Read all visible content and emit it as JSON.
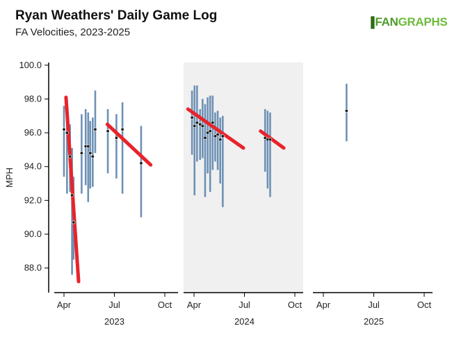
{
  "title": "Ryan Weathers' Daily Game Log",
  "subtitle": "FA Velocities, 2023-2025",
  "logo": {
    "mark": "▐",
    "text_a": "FAN",
    "text_b": "GRAPHS"
  },
  "colors": {
    "range": "#6e91b5",
    "trend": "#e8232b",
    "point": "#1a1a1a",
    "shade": "#f0f0f0",
    "axis": "#000000"
  },
  "chart_data": {
    "type": "scatter",
    "ylabel": "MPH",
    "ylim": [
      87.0,
      100.2
    ],
    "yticks": [
      "88.0",
      "90.0",
      "92.0",
      "94.0",
      "96.0",
      "98.0",
      "100.0"
    ],
    "panels": [
      {
        "year": "2023",
        "shaded": false,
        "xticks": [
          "Apr",
          "Jul",
          "Oct"
        ],
        "games": [
          {
            "x": 0.0,
            "avg": 96.2,
            "min": 93.4,
            "max": 97.6
          },
          {
            "x": 0.06,
            "avg": 96.0,
            "min": 92.4,
            "max": 97.3
          },
          {
            "x": 0.12,
            "avg": 94.6,
            "min": 92.5,
            "max": 96.5
          },
          {
            "x": 0.16,
            "avg": 92.3,
            "min": 87.6,
            "max": 95.1
          },
          {
            "x": 0.19,
            "avg": 90.7,
            "min": 88.5,
            "max": 93.4
          },
          {
            "x": 0.35,
            "avg": 94.8,
            "min": 92.4,
            "max": 97.1
          },
          {
            "x": 0.43,
            "avg": 95.2,
            "min": 92.9,
            "max": 97.4
          },
          {
            "x": 0.48,
            "avg": 95.2,
            "min": 91.9,
            "max": 97.2
          },
          {
            "x": 0.52,
            "avg": 94.8,
            "min": 92.7,
            "max": 96.7
          },
          {
            "x": 0.57,
            "avg": 94.6,
            "min": 92.8,
            "max": 96.9
          },
          {
            "x": 0.62,
            "avg": 96.2,
            "min": 94.8,
            "max": 98.5
          },
          {
            "x": 0.87,
            "avg": 96.1,
            "min": 93.6,
            "max": 97.4
          },
          {
            "x": 1.04,
            "avg": 95.7,
            "min": 93.3,
            "max": 97.1
          },
          {
            "x": 1.16,
            "avg": 96.2,
            "min": 92.4,
            "max": 97.8
          },
          {
            "x": 1.53,
            "avg": 94.2,
            "min": 91.0,
            "max": 96.4
          }
        ],
        "trends": [
          {
            "x1": 0.04,
            "y1": 98.1,
            "x2": 0.29,
            "y2": 87.2
          },
          {
            "x1": 0.86,
            "y1": 96.5,
            "x2": 1.72,
            "y2": 94.1
          }
        ]
      },
      {
        "year": "2024",
        "shaded": true,
        "xticks": [
          "Apr",
          "Jul",
          "Oct"
        ],
        "games": [
          {
            "x": -0.04,
            "avg": 96.9,
            "min": 94.7,
            "max": 98.5
          },
          {
            "x": 0.01,
            "avg": 96.4,
            "min": 92.3,
            "max": 98.8
          },
          {
            "x": 0.06,
            "avg": 96.6,
            "min": 94.3,
            "max": 98.8
          },
          {
            "x": 0.12,
            "avg": 96.5,
            "min": 94.4,
            "max": 97.4
          },
          {
            "x": 0.17,
            "avg": 96.4,
            "min": 94.5,
            "max": 98.0
          },
          {
            "x": 0.22,
            "avg": 95.7,
            "min": 92.2,
            "max": 97.7
          },
          {
            "x": 0.27,
            "avg": 96.0,
            "min": 93.6,
            "max": 98.1
          },
          {
            "x": 0.32,
            "avg": 96.1,
            "min": 92.5,
            "max": 98.2
          },
          {
            "x": 0.37,
            "avg": 96.6,
            "min": 93.8,
            "max": 98.2
          },
          {
            "x": 0.42,
            "avg": 95.8,
            "min": 94.3,
            "max": 97.2
          },
          {
            "x": 0.47,
            "avg": 95.9,
            "min": 93.8,
            "max": 97.3
          },
          {
            "x": 0.52,
            "avg": 95.6,
            "min": 93.0,
            "max": 96.9
          },
          {
            "x": 0.57,
            "avg": 95.8,
            "min": 91.6,
            "max": 97.0
          },
          {
            "x": 1.41,
            "avg": 95.7,
            "min": 93.7,
            "max": 97.4
          },
          {
            "x": 1.46,
            "avg": 95.6,
            "min": 92.7,
            "max": 97.3
          },
          {
            "x": 1.51,
            "avg": 95.6,
            "min": 92.2,
            "max": 97.2
          }
        ],
        "trends": [
          {
            "x1": -0.12,
            "y1": 97.4,
            "x2": 0.98,
            "y2": 95.1
          },
          {
            "x1": 1.32,
            "y1": 96.1,
            "x2": 1.78,
            "y2": 95.1
          }
        ]
      },
      {
        "year": "2025",
        "shaded": false,
        "xticks": [
          "Apr",
          "Jul",
          "Oct"
        ],
        "games": [
          {
            "x": 0.46,
            "avg": 97.3,
            "min": 95.5,
            "max": 98.9
          }
        ],
        "trends": []
      }
    ]
  }
}
